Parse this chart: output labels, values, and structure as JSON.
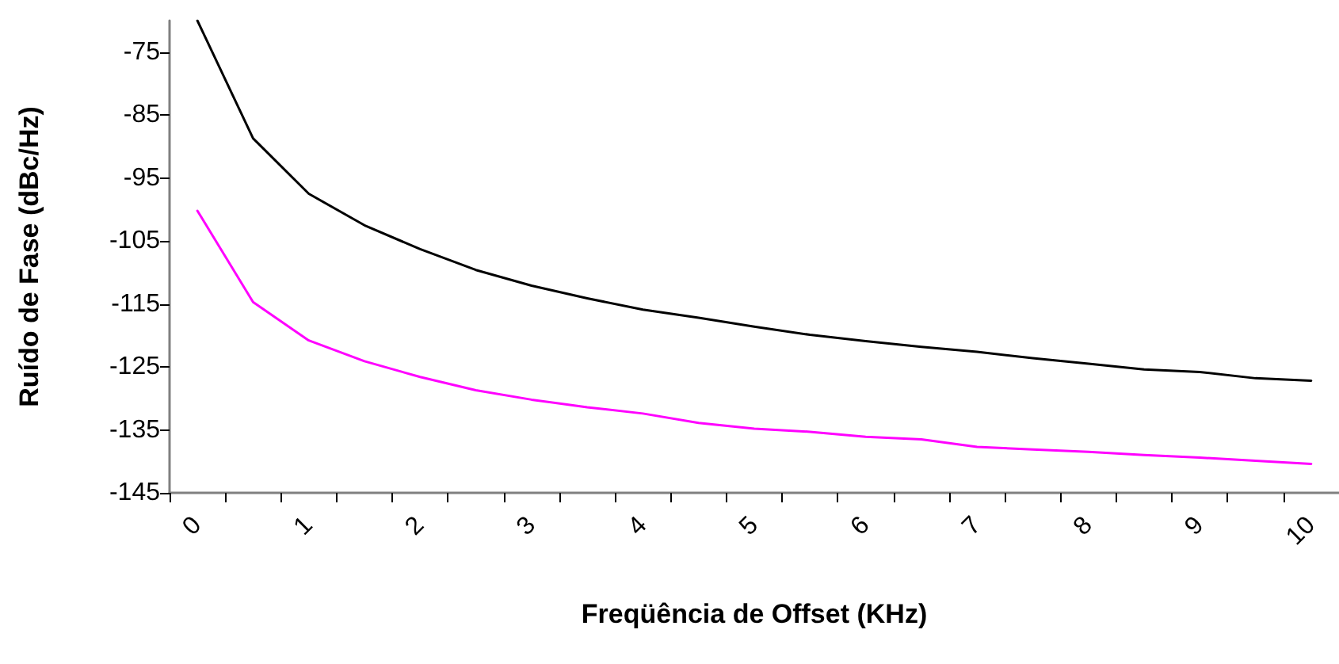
{
  "chart_data": {
    "type": "line",
    "xlabel": "Freqüência de Offset (KHz)",
    "ylabel": "Ruído de Fase (dBc/Hz)",
    "categories": [
      "0",
      null,
      "1",
      null,
      "2",
      null,
      "3",
      null,
      "4",
      null,
      "5",
      null,
      "6",
      null,
      "7",
      null,
      "8",
      null,
      "9",
      null,
      "10"
    ],
    "series": [
      {
        "color": "#000000",
        "values": [
          -70,
          -88.7,
          -97.5,
          -102.5,
          -106.3,
          -109.6,
          -112.1,
          -114.1,
          -115.9,
          -117.2,
          -118.6,
          -119.9,
          -120.9,
          -121.8,
          -122.6,
          -123.6,
          -124.5,
          -125.4,
          -125.8,
          -126.8,
          -127.2
        ]
      },
      {
        "color": "#ff00ff",
        "values": [
          -100.2,
          -114.7,
          -120.8,
          -124.1,
          -126.6,
          -128.7,
          -130.2,
          -131.4,
          -132.4,
          -133.9,
          -134.8,
          -135.3,
          -136.1,
          -136.5,
          -137.7,
          -138.1,
          -138.5,
          -139,
          -139.4,
          -139.9,
          -140.4
        ]
      }
    ],
    "ylim": [
      -145,
      -70
    ],
    "yticks": [
      -145,
      -135,
      -125,
      -115,
      -105,
      -95,
      -85,
      -75
    ],
    "marker": "none",
    "line_style": "solid"
  }
}
